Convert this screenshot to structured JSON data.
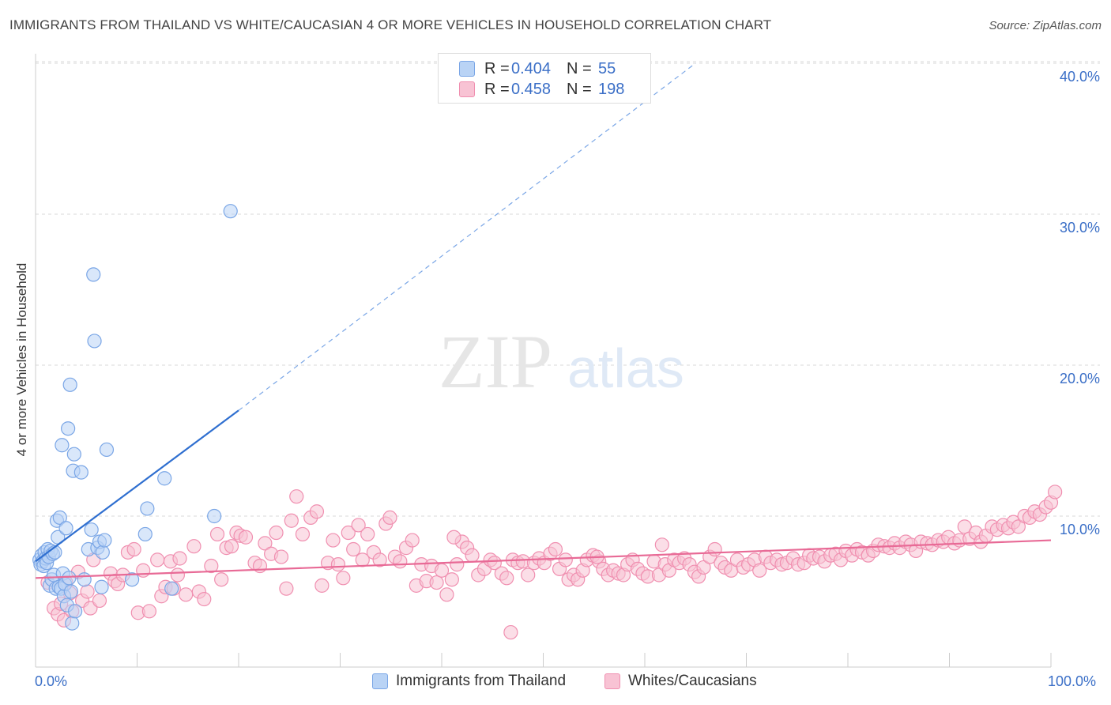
{
  "header": {
    "title": "IMMIGRANTS FROM THAILAND VS WHITE/CAUCASIAN 4 OR MORE VEHICLES IN HOUSEHOLD CORRELATION CHART",
    "source": "Source: ZipAtlas.com"
  },
  "watermark": {
    "zip": "ZIP",
    "atlas": "atlas"
  },
  "legend": {
    "rows": [
      {
        "r_label": "R =",
        "r_value": "0.404",
        "n_label": "N =",
        "n_value": "55"
      },
      {
        "r_label": "R =",
        "r_value": "0.458",
        "n_label": "N =",
        "n_value": "198"
      }
    ]
  },
  "bottom_legend": {
    "series_a": "Immigrants from Thailand",
    "series_b": "Whites/Caucasians"
  },
  "axis_text": {
    "x_min": "0.0%",
    "x_max": "100.0%",
    "y_ticks": [
      "40.0%",
      "30.0%",
      "20.0%",
      "10.0%"
    ]
  },
  "colors": {
    "blue_fill": "#b9d3f5",
    "blue_stroke": "#7aa6e6",
    "blue_line": "#2f6fd0",
    "pink_fill": "#f8c3d4",
    "pink_stroke": "#f08fb0",
    "pink_line": "#e86a96",
    "tick_text": "#3b6fc7",
    "grid": "#d9d9d9"
  },
  "chart_data": {
    "type": "scatter",
    "title": "IMMIGRANTS FROM THAILAND VS WHITE/CAUCASIAN 4 OR MORE VEHICLES IN HOUSEHOLD CORRELATION CHART",
    "xlabel": "",
    "ylabel": "4 or more Vehicles in Household",
    "xlim": [
      0,
      100
    ],
    "ylim": [
      0,
      42
    ],
    "x_ticks": [
      0,
      10,
      20,
      30,
      40,
      50,
      60,
      70,
      80,
      90,
      100
    ],
    "y_ticks": [
      10,
      20,
      30,
      40
    ],
    "grid": true,
    "legend_position": "top-center",
    "series": [
      {
        "name": "Immigrants from Thailand",
        "r": 0.404,
        "n": 55,
        "trend": {
          "x": [
            0,
            20
          ],
          "y": [
            7.0,
            17.0
          ],
          "dashed_extension_to": [
            65,
            40.0
          ]
        },
        "points": [
          [
            0.4,
            7.1
          ],
          [
            0.5,
            6.8
          ],
          [
            0.6,
            7.4
          ],
          [
            0.7,
            7.0
          ],
          [
            0.8,
            6.7
          ],
          [
            0.9,
            7.6
          ],
          [
            1.0,
            7.2
          ],
          [
            1.1,
            6.9
          ],
          [
            1.2,
            7.8
          ],
          [
            1.3,
            7.3
          ],
          [
            1.4,
            5.4
          ],
          [
            1.5,
            7.7
          ],
          [
            1.6,
            5.8
          ],
          [
            1.7,
            7.5
          ],
          [
            1.8,
            6.1
          ],
          [
            1.9,
            7.6
          ],
          [
            2.0,
            5.2
          ],
          [
            2.1,
            9.7
          ],
          [
            2.2,
            8.6
          ],
          [
            2.3,
            5.3
          ],
          [
            2.4,
            9.9
          ],
          [
            2.5,
            5.2
          ],
          [
            2.6,
            14.7
          ],
          [
            2.7,
            6.2
          ],
          [
            2.8,
            4.7
          ],
          [
            2.9,
            5.5
          ],
          [
            3.0,
            9.2
          ],
          [
            3.1,
            4.1
          ],
          [
            3.2,
            15.8
          ],
          [
            3.3,
            5.9
          ],
          [
            3.4,
            18.7
          ],
          [
            3.5,
            5.0
          ],
          [
            3.6,
            2.9
          ],
          [
            3.7,
            13.0
          ],
          [
            3.8,
            14.1
          ],
          [
            3.9,
            3.7
          ],
          [
            4.5,
            12.9
          ],
          [
            4.8,
            5.8
          ],
          [
            5.2,
            7.8
          ],
          [
            5.5,
            9.1
          ],
          [
            5.7,
            26.0
          ],
          [
            5.8,
            21.6
          ],
          [
            6.1,
            7.9
          ],
          [
            6.3,
            8.3
          ],
          [
            6.5,
            5.3
          ],
          [
            6.6,
            7.6
          ],
          [
            6.8,
            8.4
          ],
          [
            7.0,
            14.4
          ],
          [
            9.5,
            5.8
          ],
          [
            10.8,
            8.8
          ],
          [
            11.0,
            10.5
          ],
          [
            12.7,
            12.5
          ],
          [
            13.4,
            5.2
          ],
          [
            17.6,
            10.0
          ],
          [
            19.2,
            30.2
          ]
        ]
      },
      {
        "name": "Whites/Caucasians",
        "r": 0.458,
        "n": 198,
        "trend": {
          "x": [
            0,
            100
          ],
          "y": [
            5.9,
            8.4
          ]
        },
        "points": [
          [
            1.2,
            5.6
          ],
          [
            1.8,
            3.9
          ],
          [
            2.2,
            3.5
          ],
          [
            2.5,
            4.2
          ],
          [
            2.8,
            3.1
          ],
          [
            3.0,
            5.6
          ],
          [
            3.4,
            4.9
          ],
          [
            3.6,
            3.7
          ],
          [
            4.2,
            6.3
          ],
          [
            4.6,
            4.4
          ],
          [
            5.1,
            5.0
          ],
          [
            5.4,
            3.9
          ],
          [
            5.7,
            7.1
          ],
          [
            6.3,
            4.4
          ],
          [
            7.4,
            6.2
          ],
          [
            7.8,
            5.7
          ],
          [
            8.1,
            5.5
          ],
          [
            8.6,
            6.1
          ],
          [
            9.1,
            7.6
          ],
          [
            9.7,
            7.8
          ],
          [
            10.1,
            3.6
          ],
          [
            10.6,
            6.4
          ],
          [
            11.2,
            3.7
          ],
          [
            12.0,
            7.1
          ],
          [
            12.4,
            4.7
          ],
          [
            12.8,
            5.3
          ],
          [
            13.3,
            7.0
          ],
          [
            13.6,
            5.2
          ],
          [
            14.0,
            6.1
          ],
          [
            14.2,
            7.2
          ],
          [
            14.8,
            4.8
          ],
          [
            15.6,
            8.0
          ],
          [
            16.1,
            5.0
          ],
          [
            16.6,
            4.5
          ],
          [
            17.3,
            6.7
          ],
          [
            17.9,
            8.8
          ],
          [
            18.3,
            5.8
          ],
          [
            18.8,
            7.9
          ],
          [
            19.3,
            8.0
          ],
          [
            19.8,
            8.9
          ],
          [
            20.2,
            8.7
          ],
          [
            20.7,
            8.6
          ],
          [
            21.6,
            6.9
          ],
          [
            22.1,
            6.7
          ],
          [
            22.6,
            8.2
          ],
          [
            23.2,
            7.5
          ],
          [
            23.7,
            8.9
          ],
          [
            24.2,
            7.3
          ],
          [
            24.7,
            5.2
          ],
          [
            25.2,
            9.7
          ],
          [
            25.7,
            11.3
          ],
          [
            26.3,
            8.8
          ],
          [
            27.1,
            9.9
          ],
          [
            27.7,
            10.3
          ],
          [
            28.2,
            5.4
          ],
          [
            28.8,
            6.9
          ],
          [
            29.3,
            8.4
          ],
          [
            29.8,
            6.8
          ],
          [
            30.3,
            5.9
          ],
          [
            30.8,
            8.9
          ],
          [
            31.3,
            7.8
          ],
          [
            31.8,
            9.4
          ],
          [
            32.2,
            7.1
          ],
          [
            32.7,
            8.8
          ],
          [
            33.3,
            7.6
          ],
          [
            33.9,
            7.1
          ],
          [
            34.5,
            9.5
          ],
          [
            34.9,
            9.9
          ],
          [
            35.4,
            7.3
          ],
          [
            35.9,
            7.0
          ],
          [
            36.5,
            7.9
          ],
          [
            37.1,
            8.4
          ],
          [
            37.5,
            5.4
          ],
          [
            38.0,
            6.8
          ],
          [
            38.5,
            5.7
          ],
          [
            39.0,
            6.7
          ],
          [
            39.5,
            5.6
          ],
          [
            40.0,
            6.4
          ],
          [
            40.5,
            4.8
          ],
          [
            41.0,
            5.8
          ],
          [
            41.5,
            6.8
          ],
          [
            42.0,
            8.3
          ],
          [
            42.5,
            7.9
          ],
          [
            43.0,
            7.4
          ],
          [
            43.6,
            6.1
          ],
          [
            44.2,
            6.5
          ],
          [
            44.8,
            7.1
          ],
          [
            45.2,
            6.9
          ],
          [
            45.9,
            6.2
          ],
          [
            46.4,
            5.9
          ],
          [
            47.0,
            7.1
          ],
          [
            47.5,
            6.9
          ],
          [
            48.0,
            7.0
          ],
          [
            48.5,
            6.1
          ],
          [
            49.1,
            6.9
          ],
          [
            49.6,
            7.2
          ],
          [
            50.1,
            6.9
          ],
          [
            50.7,
            7.5
          ],
          [
            51.2,
            7.8
          ],
          [
            51.6,
            6.5
          ],
          [
            52.2,
            7.1
          ],
          [
            52.5,
            5.8
          ],
          [
            53.0,
            6.1
          ],
          [
            53.4,
            5.8
          ],
          [
            53.9,
            6.4
          ],
          [
            54.3,
            7.1
          ],
          [
            54.9,
            7.4
          ],
          [
            55.5,
            7.0
          ],
          [
            55.9,
            6.5
          ],
          [
            56.4,
            6.1
          ],
          [
            56.9,
            6.4
          ],
          [
            57.4,
            6.2
          ],
          [
            57.9,
            6.1
          ],
          [
            58.3,
            6.8
          ],
          [
            58.8,
            7.1
          ],
          [
            59.3,
            6.5
          ],
          [
            59.8,
            6.2
          ],
          [
            60.3,
            6.0
          ],
          [
            60.9,
            7.0
          ],
          [
            61.4,
            6.1
          ],
          [
            62.0,
            6.8
          ],
          [
            62.4,
            6.4
          ],
          [
            62.9,
            7.1
          ],
          [
            63.4,
            6.9
          ],
          [
            63.9,
            7.2
          ],
          [
            64.4,
            6.8
          ],
          [
            64.9,
            6.3
          ],
          [
            65.3,
            6.0
          ],
          [
            65.8,
            6.6
          ],
          [
            66.4,
            7.3
          ],
          [
            66.9,
            7.8
          ],
          [
            67.5,
            6.9
          ],
          [
            67.9,
            6.6
          ],
          [
            68.5,
            6.4
          ],
          [
            69.1,
            7.1
          ],
          [
            69.7,
            6.6
          ],
          [
            70.2,
            6.8
          ],
          [
            70.8,
            7.1
          ],
          [
            71.3,
            6.4
          ],
          [
            71.9,
            7.3
          ],
          [
            72.4,
            6.9
          ],
          [
            73.0,
            7.1
          ],
          [
            73.5,
            6.8
          ],
          [
            74.0,
            6.9
          ],
          [
            74.6,
            7.2
          ],
          [
            75.1,
            6.8
          ],
          [
            75.7,
            6.9
          ],
          [
            76.2,
            7.4
          ],
          [
            76.6,
            7.2
          ],
          [
            77.2,
            7.3
          ],
          [
            77.7,
            7.0
          ],
          [
            78.3,
            7.4
          ],
          [
            78.8,
            7.5
          ],
          [
            79.3,
            7.1
          ],
          [
            79.8,
            7.7
          ],
          [
            80.4,
            7.4
          ],
          [
            80.9,
            7.8
          ],
          [
            81.4,
            7.6
          ],
          [
            82.0,
            7.4
          ],
          [
            82.5,
            7.7
          ],
          [
            83.0,
            8.1
          ],
          [
            83.6,
            8.0
          ],
          [
            84.1,
            7.9
          ],
          [
            84.6,
            8.2
          ],
          [
            85.1,
            7.9
          ],
          [
            85.7,
            8.3
          ],
          [
            86.2,
            8.1
          ],
          [
            86.7,
            7.7
          ],
          [
            87.2,
            8.3
          ],
          [
            87.8,
            8.2
          ],
          [
            88.3,
            8.1
          ],
          [
            88.9,
            8.4
          ],
          [
            89.4,
            8.3
          ],
          [
            89.9,
            8.6
          ],
          [
            90.5,
            8.2
          ],
          [
            91.0,
            8.4
          ],
          [
            91.5,
            9.3
          ],
          [
            92.0,
            8.5
          ],
          [
            92.6,
            8.9
          ],
          [
            93.1,
            8.3
          ],
          [
            93.6,
            8.7
          ],
          [
            94.2,
            9.3
          ],
          [
            94.7,
            9.1
          ],
          [
            95.3,
            9.4
          ],
          [
            95.8,
            9.2
          ],
          [
            96.3,
            9.6
          ],
          [
            96.8,
            9.3
          ],
          [
            97.4,
            10.0
          ],
          [
            97.9,
            9.9
          ],
          [
            98.4,
            10.3
          ],
          [
            98.9,
            10.1
          ],
          [
            99.5,
            10.6
          ],
          [
            100.0,
            10.9
          ],
          [
            100.4,
            11.6
          ],
          [
            41.2,
            8.6
          ],
          [
            46.8,
            2.3
          ],
          [
            55.3,
            7.3
          ],
          [
            61.7,
            8.1
          ]
        ]
      }
    ]
  }
}
